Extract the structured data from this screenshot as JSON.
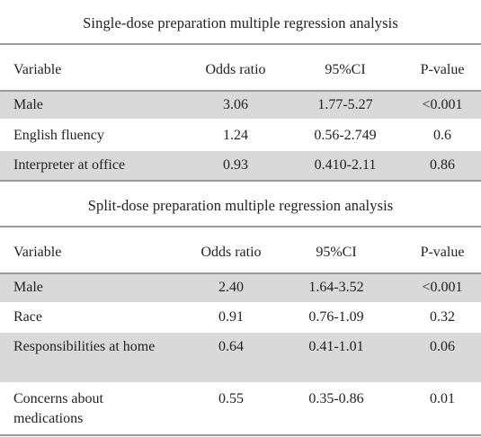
{
  "single": {
    "title": "Single-dose preparation multiple regression analysis",
    "headers": [
      "Variable",
      "Odds ratio",
      "95%CI",
      "P-value"
    ],
    "rows": [
      [
        "Male",
        "3.06",
        "1.77-5.27",
        "<0.001"
      ],
      [
        "English fluency",
        "1.24",
        "0.56-2.749",
        "0.6"
      ],
      [
        "Interpreter at office",
        "0.93",
        "0.410-2.11",
        "0.86"
      ]
    ]
  },
  "split": {
    "title": "Split-dose preparation multiple regression analysis",
    "headers": [
      "Variable",
      "Odds ratio",
      "95%CI",
      "P-value"
    ],
    "rows": [
      [
        "Male",
        "2.40",
        "1.64-3.52",
        "<0.001"
      ],
      [
        "Race",
        "0.91",
        "0.76-1.09",
        "0.32"
      ],
      [
        "Responsibilities at home",
        "0.64",
        "0.41-1.01",
        "0.06"
      ],
      [
        "Concerns about medications",
        "0.55",
        "0.35-0.86",
        "0.01"
      ]
    ]
  }
}
